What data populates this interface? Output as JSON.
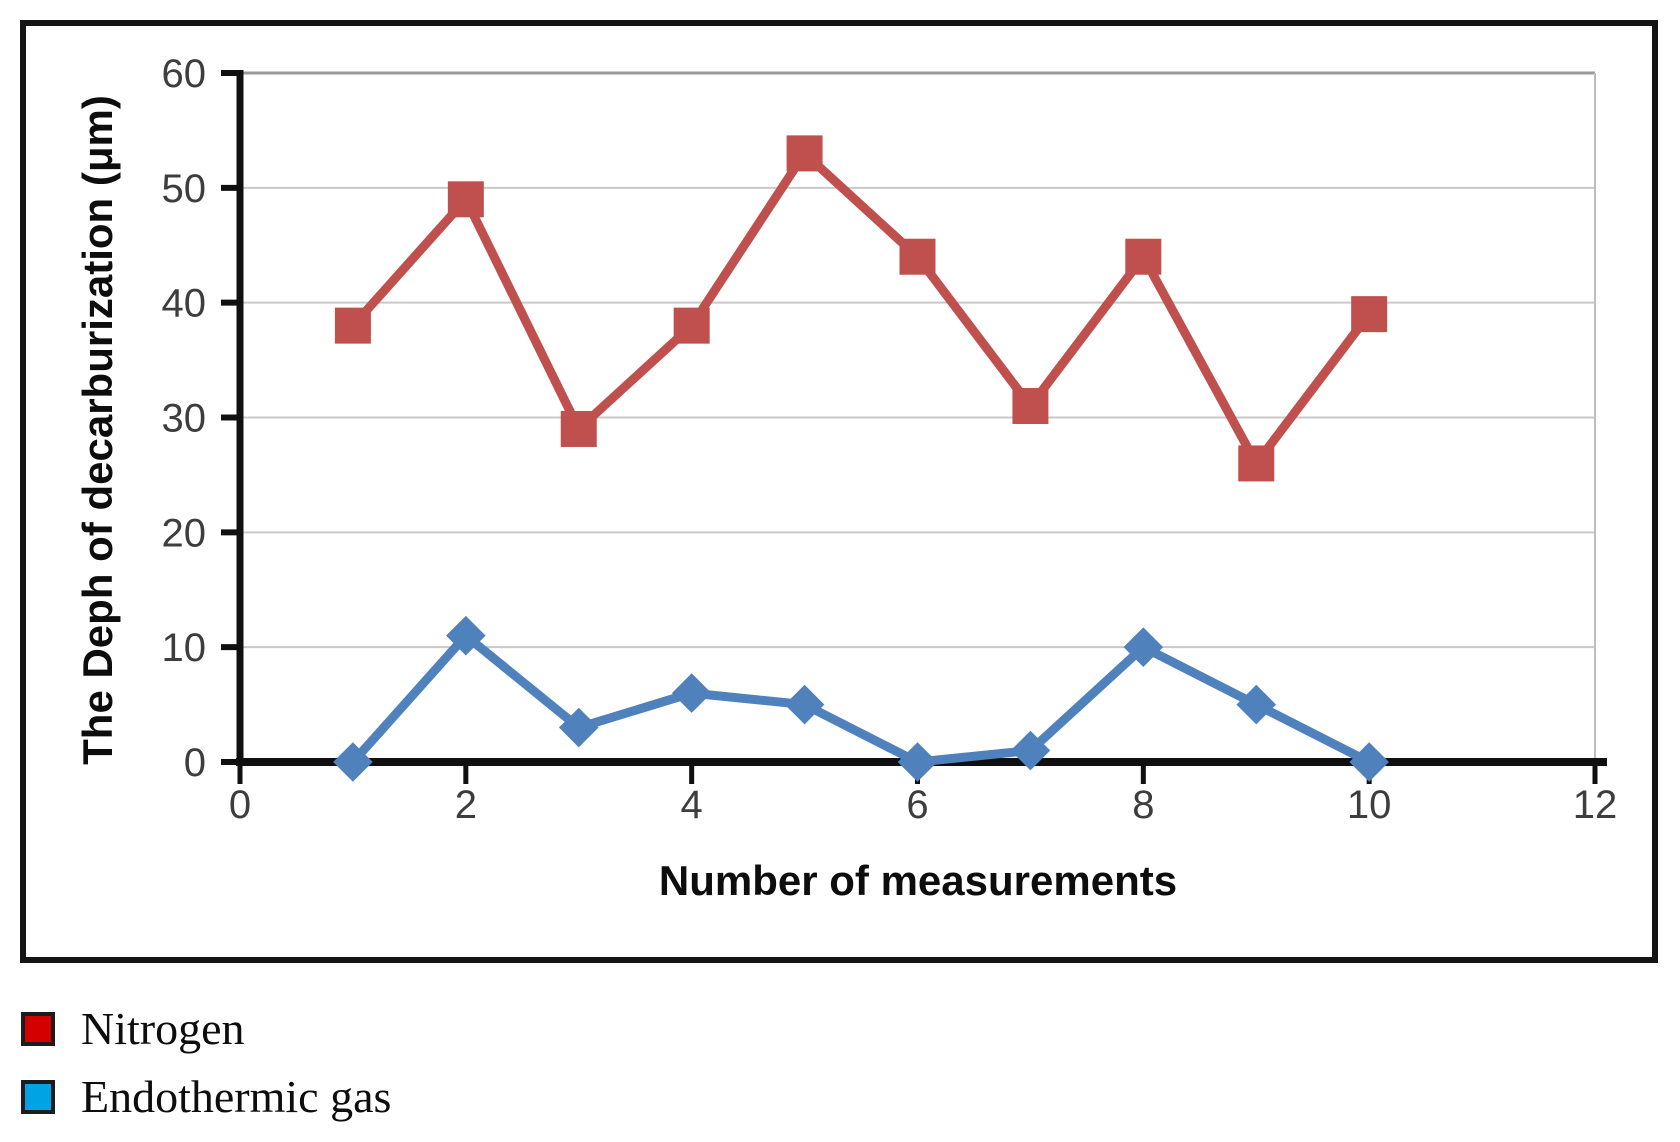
{
  "chart_data": {
    "type": "line",
    "title": "",
    "xlabel": "Number of measurements",
    "ylabel": "The Deph of decarburization (μm)",
    "xlim": [
      0,
      12
    ],
    "ylim": [
      0,
      60
    ],
    "x_ticks": [
      0,
      2,
      4,
      6,
      8,
      10,
      12
    ],
    "y_ticks": [
      0,
      10,
      20,
      30,
      40,
      50,
      60
    ],
    "grid": "horizontal",
    "x": [
      1,
      2,
      3,
      4,
      5,
      6,
      7,
      8,
      9,
      10
    ],
    "series": [
      {
        "name": "Nitrogen",
        "color": "#C0504D",
        "marker": "square",
        "values": [
          38,
          49,
          29,
          38,
          53,
          44,
          31,
          44,
          26,
          39
        ]
      },
      {
        "name": "Endothermic gas",
        "color": "#4F81BD",
        "marker": "diamond",
        "values": [
          0,
          11,
          3,
          6,
          5,
          0,
          1,
          10,
          5,
          0
        ]
      }
    ],
    "legend_position": "bottom-left-outside"
  },
  "legend": {
    "items": [
      {
        "label": "Nitrogen",
        "swatch_color": "#D40000"
      },
      {
        "label": "Endothermic gas",
        "swatch_color": "#00A4E4"
      }
    ]
  }
}
